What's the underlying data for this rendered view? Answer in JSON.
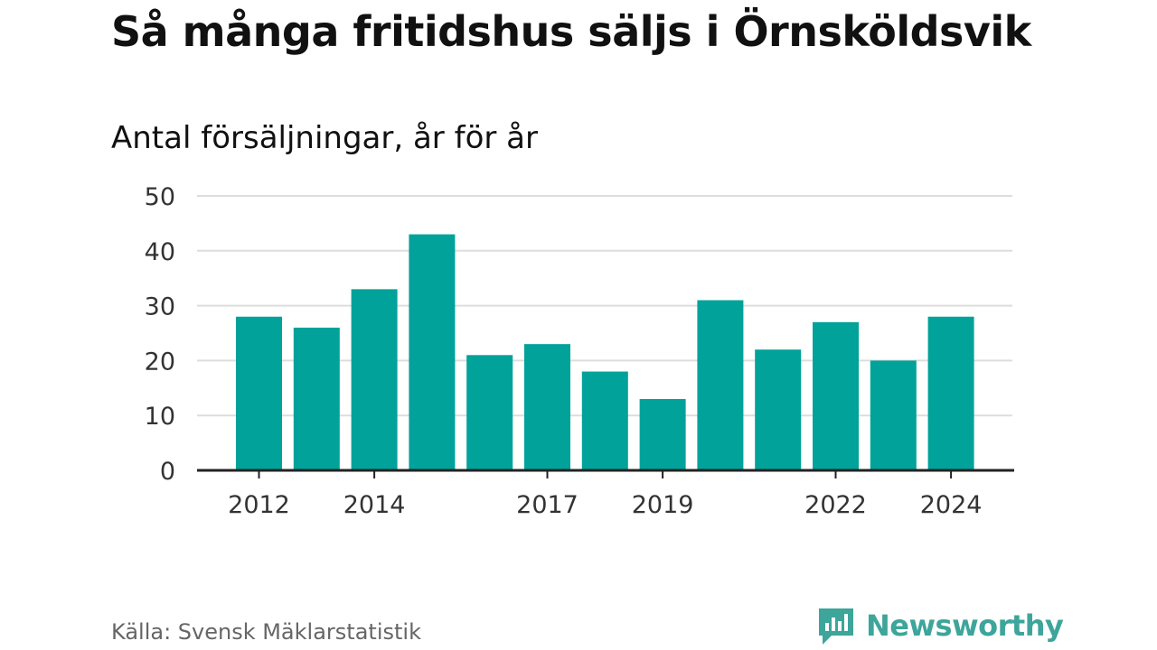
{
  "title": "Så många fritidshus säljs i Örnsköldsvik",
  "subtitle": "Antal försäljningar, år för år",
  "source": "Källa: Svensk Mäklarstatistik",
  "brand": {
    "name": "Newsworthy",
    "icon": "newsworthy-logo-icon",
    "color": "#3da59a"
  },
  "colors": {
    "bar": "#00a29a",
    "grid": "#dddddd",
    "axis": "#222222"
  },
  "chart_data": {
    "type": "bar",
    "categories": [
      "2012",
      "2013",
      "2014",
      "2015",
      "2016",
      "2017",
      "2018",
      "2019",
      "2020",
      "2021",
      "2022",
      "2023",
      "2024"
    ],
    "values": [
      28,
      26,
      33,
      43,
      21,
      23,
      18,
      13,
      31,
      22,
      27,
      20,
      28
    ],
    "x_tick_labels": [
      "2012",
      "2014",
      "2017",
      "2019",
      "2022",
      "2024"
    ],
    "y_ticks": [
      0,
      10,
      20,
      30,
      40,
      50
    ],
    "ylim": [
      0,
      50
    ],
    "grid": true,
    "xlabel": "",
    "ylabel": ""
  }
}
